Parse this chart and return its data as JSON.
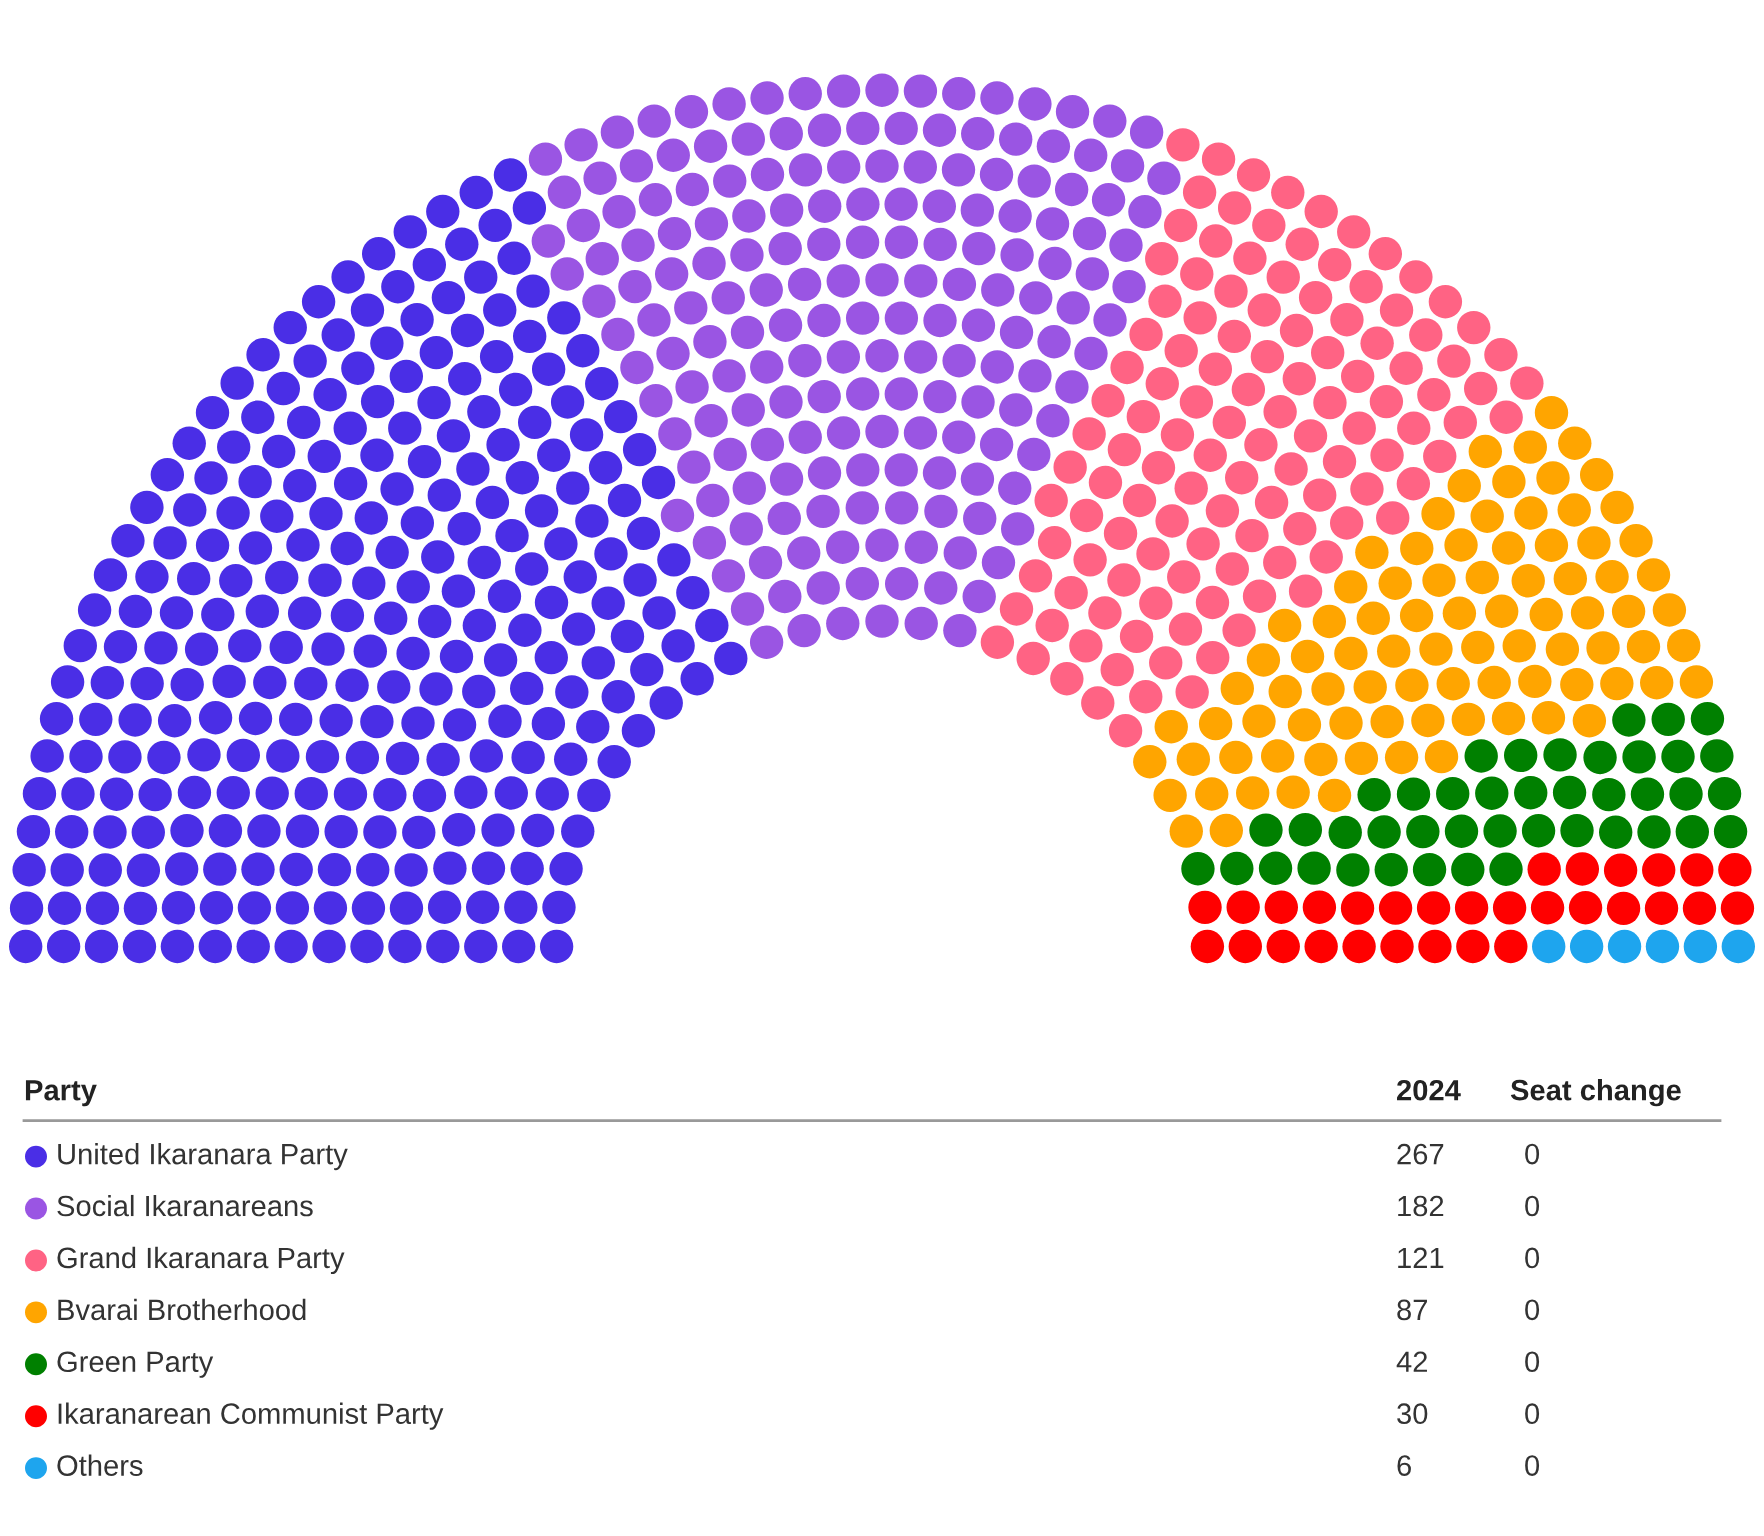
{
  "chart_data": {
    "type": "other",
    "legend_title": "Party",
    "categories": [
      "United Ikaranara Party",
      "Social Ikaranareans",
      "Grand Ikaranara Party",
      "Bvarai Brotherhood",
      "Green Party",
      "Ikaranarean Communist Party",
      "Others"
    ],
    "colors": [
      "#4a2ee6",
      "#9a55e3",
      "#ff6384",
      "#ffa500",
      "#008000",
      "#ff0000",
      "#1ea5ee"
    ],
    "series": [
      {
        "name": "2024",
        "values": [
          267,
          182,
          121,
          87,
          42,
          30,
          6
        ]
      },
      {
        "name": "Seat change",
        "values": [
          0,
          0,
          0,
          0,
          0,
          0,
          0
        ]
      }
    ],
    "data_labels": true
  }
}
